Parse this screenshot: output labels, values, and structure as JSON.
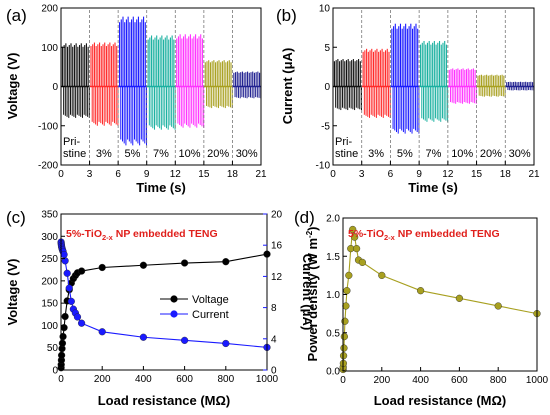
{
  "chart_data": [
    {
      "id": "a",
      "type": "line",
      "panel_label": "(a)",
      "xlabel": "Time (s)",
      "ylabel": "Voltage (V)",
      "xlim": [
        0,
        21
      ],
      "ylim": [
        -200,
        200
      ],
      "xticks": [
        "0",
        "3",
        "6",
        "9",
        "12",
        "15",
        "18",
        "21"
      ],
      "yticks": [
        "-200",
        "-100",
        "0",
        "100",
        "200"
      ],
      "segments": [
        {
          "label": "Pri-\nstine",
          "t_range": [
            0,
            3
          ],
          "pos_peak": 110,
          "neg_peak": -80,
          "color": "#111111"
        },
        {
          "label": "3%",
          "t_range": [
            3,
            6
          ],
          "pos_peak": 112,
          "neg_peak": -100,
          "color": "#ff2a2a"
        },
        {
          "label": "5%",
          "t_range": [
            6,
            9
          ],
          "pos_peak": 178,
          "neg_peak": -150,
          "color": "#1a1aff"
        },
        {
          "label": "7%",
          "t_range": [
            9,
            12
          ],
          "pos_peak": 130,
          "neg_peak": -110,
          "color": "#1ab0a0"
        },
        {
          "label": "10%",
          "t_range": [
            12,
            15
          ],
          "pos_peak": 133,
          "neg_peak": -105,
          "color": "#ff33ff"
        },
        {
          "label": "20%",
          "t_range": [
            15,
            18
          ],
          "pos_peak": 67,
          "neg_peak": -55,
          "color": "#a8a020"
        },
        {
          "label": "30%",
          "t_range": [
            18,
            21
          ],
          "pos_peak": 38,
          "neg_peak": -30,
          "color": "#202090"
        }
      ]
    },
    {
      "id": "b",
      "type": "line",
      "panel_label": "(b)",
      "xlabel": "Time (s)",
      "ylabel": "Current (μA)",
      "xlim": [
        0,
        21
      ],
      "ylim": [
        -10,
        10
      ],
      "xticks": [
        "0",
        "3",
        "6",
        "9",
        "12",
        "15",
        "18",
        "21"
      ],
      "yticks": [
        "-10",
        "-5",
        "0",
        "5",
        "10"
      ],
      "segments": [
        {
          "label": "Pri-\nstine",
          "t_range": [
            0,
            3
          ],
          "pos_peak": 3.5,
          "neg_peak": -3.0,
          "color": "#111111"
        },
        {
          "label": "3%",
          "t_range": [
            3,
            6
          ],
          "pos_peak": 4.8,
          "neg_peak": -4.0,
          "color": "#ff2a2a"
        },
        {
          "label": "5%",
          "t_range": [
            6,
            9
          ],
          "pos_peak": 8.0,
          "neg_peak": -6.0,
          "color": "#1a1aff"
        },
        {
          "label": "7%",
          "t_range": [
            9,
            12
          ],
          "pos_peak": 5.8,
          "neg_peak": -4.5,
          "color": "#1ab0a0"
        },
        {
          "label": "10%",
          "t_range": [
            12,
            15
          ],
          "pos_peak": 2.3,
          "neg_peak": -2.2,
          "color": "#ff33ff"
        },
        {
          "label": "20%",
          "t_range": [
            15,
            18
          ],
          "pos_peak": 1.5,
          "neg_peak": -1.3,
          "color": "#a8a020"
        },
        {
          "label": "30%",
          "t_range": [
            18,
            21
          ],
          "pos_peak": 0.6,
          "neg_peak": -0.5,
          "color": "#202090"
        }
      ]
    },
    {
      "id": "c",
      "type": "line",
      "panel_label": "(c)",
      "title_prefix": "5%-TiO",
      "title_sub": "2-x",
      "title_suffix": " NP embedded TENG",
      "xlabel": "Load resistance (MΩ)",
      "ylabel": "Voltage (V)",
      "ylabel_right": "Current (μA)",
      "xlim": [
        0,
        1000
      ],
      "ylim": [
        0,
        350
      ],
      "ylim_right": [
        0,
        20
      ],
      "xticks": [
        "0",
        "200",
        "400",
        "600",
        "800",
        "1000"
      ],
      "yticks": [
        "0",
        "50",
        "100",
        "150",
        "200",
        "250",
        "300",
        "350"
      ],
      "yticks_right": [
        "0",
        "4",
        "8",
        "12",
        "16",
        "20"
      ],
      "legend_position": "center-right",
      "series": [
        {
          "name": "Voltage",
          "axis": "left",
          "color": "#000000",
          "x": [
            0.5,
            1,
            2,
            3,
            5,
            7,
            10,
            15,
            20,
            30,
            40,
            50,
            60,
            70,
            80,
            100,
            200,
            400,
            600,
            800,
            1000
          ],
          "y": [
            5,
            12,
            22,
            33,
            48,
            60,
            75,
            95,
            120,
            155,
            180,
            195,
            205,
            212,
            218,
            222,
            230,
            235,
            240,
            243,
            260
          ]
        },
        {
          "name": "Current",
          "axis": "right",
          "color": "#1a1aff",
          "x": [
            0.5,
            1,
            2,
            3,
            5,
            7,
            10,
            15,
            20,
            30,
            40,
            50,
            60,
            70,
            80,
            100,
            200,
            400,
            600,
            800,
            1000
          ],
          "y": [
            16.4,
            16.2,
            16.0,
            15.8,
            15.6,
            15.4,
            15.2,
            14.8,
            14.0,
            12.4,
            10.5,
            8.8,
            7.8,
            7.3,
            6.8,
            6.0,
            4.9,
            4.2,
            3.8,
            3.4,
            2.9
          ]
        }
      ]
    },
    {
      "id": "d",
      "type": "line",
      "panel_label": "(d)",
      "title_prefix": "5%-TiO",
      "title_sub": "2-x",
      "title_suffix": " NP embedded TENG",
      "xlabel": "Load resistance (MΩ)",
      "ylabel": "Power density (W m",
      "ylabel_sup": "-2",
      "ylabel_end": ")",
      "xlim": [
        0,
        1000
      ],
      "ylim": [
        0,
        2.0
      ],
      "xticks": [
        "0",
        "200",
        "400",
        "600",
        "800",
        "1000"
      ],
      "yticks": [
        "0.0",
        "0.5",
        "1.0",
        "1.5",
        "2.0"
      ],
      "series": [
        {
          "name": "Power density",
          "color": "#a8a020",
          "x": [
            0.5,
            1,
            2,
            3,
            5,
            7,
            10,
            15,
            20,
            30,
            40,
            50,
            60,
            70,
            80,
            100,
            200,
            400,
            600,
            800,
            1000
          ],
          "y": [
            0.02,
            0.05,
            0.1,
            0.2,
            0.3,
            0.45,
            0.65,
            0.85,
            1.05,
            1.25,
            1.6,
            1.85,
            1.75,
            1.6,
            1.45,
            1.42,
            1.25,
            1.05,
            0.95,
            0.85,
            0.75
          ]
        }
      ]
    }
  ]
}
